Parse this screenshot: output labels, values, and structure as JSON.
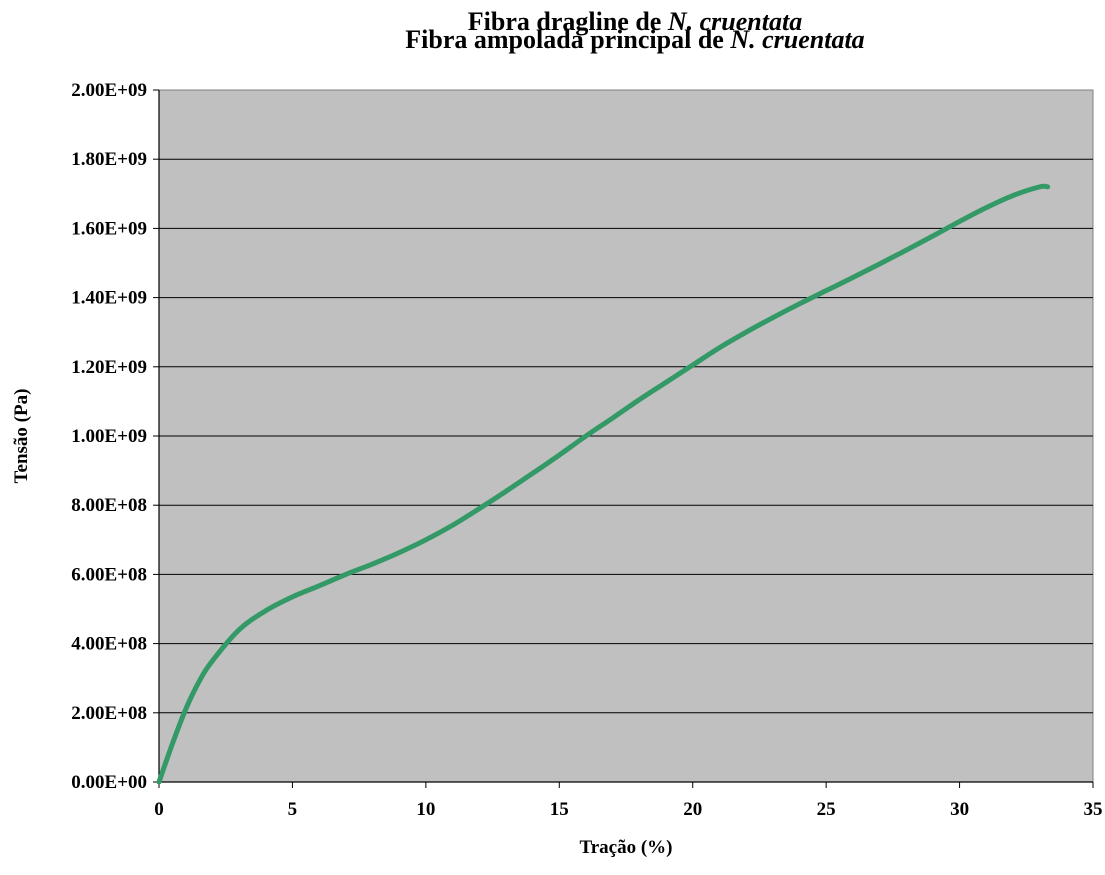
{
  "chart_data": {
    "type": "line",
    "title_lines": [
      {
        "prefix": "Fibra dragline de ",
        "species": "N. cruentata"
      },
      {
        "prefix": "Fibra ampolada principal de ",
        "species": "N. cruentata"
      }
    ],
    "xlabel": "Tração (%)",
    "ylabel": "Tensão (Pa)",
    "xlim": [
      0,
      35
    ],
    "ylim": [
      0,
      2000000000
    ],
    "x_ticks": [
      0,
      5,
      10,
      15,
      20,
      25,
      30,
      35
    ],
    "x_tick_labels": [
      "0",
      "5",
      "10",
      "15",
      "20",
      "25",
      "30",
      "35"
    ],
    "y_ticks": [
      0,
      200000000,
      400000000,
      600000000,
      800000000,
      1000000000,
      1200000000,
      1400000000,
      1600000000,
      1800000000,
      2000000000
    ],
    "y_tick_labels": [
      "0.00E+00",
      "2.00E+08",
      "4.00E+08",
      "6.00E+08",
      "8.00E+08",
      "1.00E+09",
      "1.20E+09",
      "1.40E+09",
      "1.60E+09",
      "1.80E+09",
      "2.00E+09"
    ],
    "grid": "horizontal",
    "background": "#c0c0c0",
    "line_color": "#339966",
    "series": [
      {
        "x": [
          0,
          0.5,
          1,
          1.5,
          2,
          3,
          4,
          5,
          6,
          7,
          8,
          9,
          10,
          11,
          12,
          13,
          14,
          15,
          16,
          17,
          18,
          19,
          20,
          21,
          22,
          23,
          24,
          25,
          26,
          27,
          28,
          29,
          30,
          31,
          32,
          33,
          33.3
        ],
        "y": [
          0,
          110000000,
          210000000,
          290000000,
          350000000,
          440000000,
          495000000,
          535000000,
          567000000,
          600000000,
          630000000,
          663000000,
          700000000,
          742000000,
          790000000,
          840000000,
          892000000,
          945000000,
          1000000000,
          1052000000,
          1105000000,
          1155000000,
          1205000000,
          1255000000,
          1300000000,
          1342000000,
          1382000000,
          1420000000,
          1458000000,
          1497000000,
          1537000000,
          1578000000,
          1620000000,
          1660000000,
          1695000000,
          1720000000,
          1720000000
        ]
      }
    ]
  }
}
